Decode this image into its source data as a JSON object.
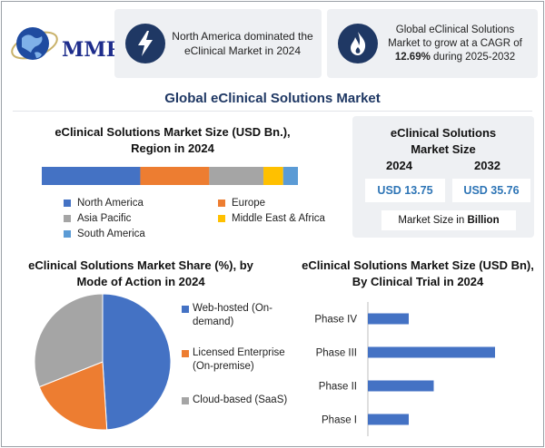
{
  "logo": {
    "text": "MMR"
  },
  "header": {
    "card1_text": "North America dominated the eClinical Market in 2024",
    "card2_line1": "Global eClinical Solutions Market to grow at a CAGR of ",
    "card2_cagr": "12.69%",
    "card2_line2": " during 2025-2032",
    "icons": [
      "lightning-icon",
      "flame-icon"
    ]
  },
  "main_title": "Global eClinical Solutions Market",
  "side_card": {
    "title": "eClinical Solutions Market Size",
    "year1": "2024",
    "year2": "2032",
    "value1": "USD 13.75",
    "value2": "USD 35.76",
    "unit_prefix": "Market Size in ",
    "unit_bold": "Billion"
  },
  "colors": {
    "north_america": "#4472c4",
    "europe": "#ed7d31",
    "asia_pacific": "#a5a5a5",
    "mea": "#ffc000",
    "south_america": "#5b9bd5",
    "dark_navy": "#1f3864",
    "value_blue": "#2e75b6"
  },
  "chart_data": [
    {
      "type": "bar",
      "orientation": "horizontal-stacked",
      "title": "eClinical Solutions Market Size (USD Bn.), Region in 2024",
      "series": [
        {
          "name": "North America",
          "values": [
            40
          ]
        },
        {
          "name": "Europe",
          "values": [
            28
          ]
        },
        {
          "name": "Asia Pacific",
          "values": [
            22
          ]
        },
        {
          "name": "Middle East & Africa",
          "values": [
            8
          ]
        },
        {
          "name": "South America",
          "values": [
            6
          ]
        }
      ],
      "legend": [
        "North America",
        "Europe",
        "Asia Pacific",
        "Middle East & Africa",
        "South America"
      ],
      "legend_position": "bottom"
    },
    {
      "type": "pie",
      "title": "eClinical Solutions Market Share (%), by Mode of Action in 2024",
      "labels": [
        "Web-hosted (On-demand)",
        "Licensed Enterprise (On-premise)",
        "Cloud-based (SaaS)"
      ],
      "values": [
        49,
        20,
        31
      ],
      "legend_position": "right"
    },
    {
      "type": "bar",
      "orientation": "horizontal",
      "title": "eClinical Solutions Market Size (USD Bn), By Clinical Trial in 2024",
      "categories": [
        "Phase IV",
        "Phase III",
        "Phase II",
        "Phase I"
      ],
      "values": [
        1.8,
        5.6,
        2.9,
        1.8
      ],
      "xlim": [
        0,
        6
      ],
      "grid": false
    }
  ]
}
